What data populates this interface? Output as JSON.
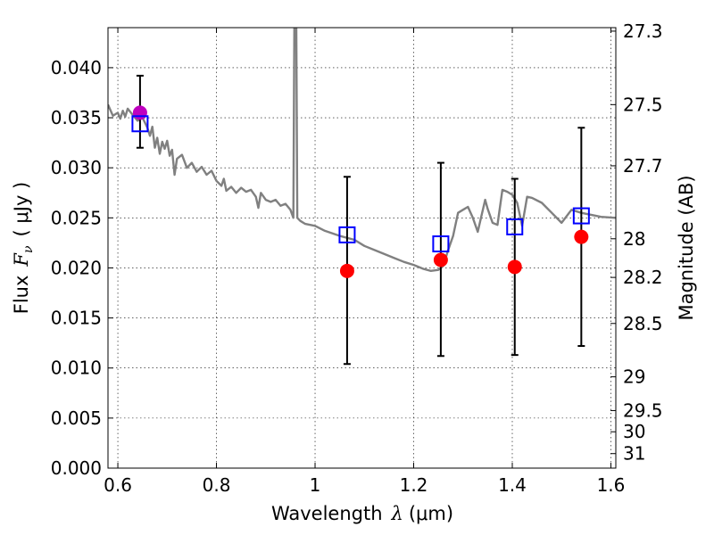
{
  "chart_data": {
    "type": "scatter",
    "title": "",
    "xlabel_main": "Wavelength",
    "xlabel_symbol": "λ",
    "xlabel_unit": "(μm)",
    "ylabel_main": "Flux",
    "ylabel_symbol": "F",
    "ylabel_subscript": "ν",
    "ylabel_unit": "( μJy )",
    "y2label": "Magnitude (AB)",
    "xlim": [
      0.58,
      1.61
    ],
    "ylim": [
      0.0,
      0.044
    ],
    "grid": true,
    "x_ticks": [
      0.6,
      0.8,
      1.0,
      1.2,
      1.4,
      1.6
    ],
    "x_tick_labels": [
      "0.6",
      "0.8",
      "1",
      "1.2",
      "1.4",
      "1.6"
    ],
    "y_ticks": [
      0.0,
      0.005,
      0.01,
      0.015,
      0.02,
      0.025,
      0.03,
      0.035,
      0.04
    ],
    "y_tick_labels": [
      "0.000",
      "0.005",
      "0.010",
      "0.015",
      "0.020",
      "0.025",
      "0.030",
      "0.035",
      "0.040"
    ],
    "y2_ticks": [
      {
        "mag": "27.3",
        "flux": 0.04365
      },
      {
        "mag": "27.5",
        "flux": 0.03631
      },
      {
        "mag": "27.7",
        "flux": 0.0302
      },
      {
        "mag": "28",
        "flux": 0.02291
      },
      {
        "mag": "28.2",
        "flux": 0.01905
      },
      {
        "mag": "28.5",
        "flux": 0.01445
      },
      {
        "mag": "29",
        "flux": 0.00912
      },
      {
        "mag": "29.5",
        "flux": 0.00575
      },
      {
        "mag": "30",
        "flux": 0.00363
      },
      {
        "mag": "31",
        "flux": 0.00145
      }
    ],
    "series": [
      {
        "kind": "spectrum",
        "color": "#808080",
        "points": [
          [
            0.58,
            0.0363
          ],
          [
            0.59,
            0.0352
          ],
          [
            0.6,
            0.0355
          ],
          [
            0.605,
            0.0349
          ],
          [
            0.61,
            0.0357
          ],
          [
            0.615,
            0.0351
          ],
          [
            0.62,
            0.0359
          ],
          [
            0.63,
            0.0353
          ],
          [
            0.64,
            0.0347
          ],
          [
            0.65,
            0.035
          ],
          [
            0.66,
            0.034
          ],
          [
            0.665,
            0.0332
          ],
          [
            0.67,
            0.0341
          ],
          [
            0.675,
            0.032
          ],
          [
            0.68,
            0.033
          ],
          [
            0.685,
            0.0314
          ],
          [
            0.69,
            0.0326
          ],
          [
            0.695,
            0.0319
          ],
          [
            0.7,
            0.0327
          ],
          [
            0.705,
            0.0312
          ],
          [
            0.71,
            0.0318
          ],
          [
            0.715,
            0.0293
          ],
          [
            0.72,
            0.0309
          ],
          [
            0.73,
            0.0313
          ],
          [
            0.74,
            0.03
          ],
          [
            0.75,
            0.0305
          ],
          [
            0.76,
            0.0296
          ],
          [
            0.77,
            0.0301
          ],
          [
            0.78,
            0.0293
          ],
          [
            0.79,
            0.0297
          ],
          [
            0.8,
            0.0287
          ],
          [
            0.81,
            0.0282
          ],
          [
            0.815,
            0.0289
          ],
          [
            0.82,
            0.0277
          ],
          [
            0.83,
            0.0281
          ],
          [
            0.84,
            0.0275
          ],
          [
            0.85,
            0.028
          ],
          [
            0.86,
            0.0276
          ],
          [
            0.87,
            0.0278
          ],
          [
            0.88,
            0.0271
          ],
          [
            0.885,
            0.026
          ],
          [
            0.89,
            0.0275
          ],
          [
            0.9,
            0.0268
          ],
          [
            0.91,
            0.0266
          ],
          [
            0.92,
            0.0268
          ],
          [
            0.93,
            0.0262
          ],
          [
            0.94,
            0.0264
          ],
          [
            0.95,
            0.0258
          ],
          [
            0.956,
            0.025
          ],
          [
            0.958,
            0.044
          ],
          [
            0.962,
            0.044
          ],
          [
            0.964,
            0.025
          ],
          [
            0.97,
            0.0247
          ],
          [
            0.98,
            0.0244
          ],
          [
            1.0,
            0.0242
          ],
          [
            1.02,
            0.0237
          ],
          [
            1.05,
            0.0232
          ],
          [
            1.08,
            0.0228
          ],
          [
            1.1,
            0.0222
          ],
          [
            1.13,
            0.0216
          ],
          [
            1.16,
            0.021
          ],
          [
            1.18,
            0.0206
          ],
          [
            1.2,
            0.0203
          ],
          [
            1.22,
            0.0199
          ],
          [
            1.235,
            0.0197
          ],
          [
            1.25,
            0.0198
          ],
          [
            1.26,
            0.0202
          ],
          [
            1.27,
            0.0218
          ],
          [
            1.28,
            0.0232
          ],
          [
            1.29,
            0.0255
          ],
          [
            1.3,
            0.0258
          ],
          [
            1.31,
            0.0261
          ],
          [
            1.32,
            0.025
          ],
          [
            1.33,
            0.0236
          ],
          [
            1.345,
            0.0268
          ],
          [
            1.35,
            0.0259
          ],
          [
            1.36,
            0.0245
          ],
          [
            1.37,
            0.0243
          ],
          [
            1.38,
            0.0278
          ],
          [
            1.39,
            0.0276
          ],
          [
            1.4,
            0.0273
          ],
          [
            1.41,
            0.0265
          ],
          [
            1.42,
            0.0242
          ],
          [
            1.43,
            0.0271
          ],
          [
            1.44,
            0.027
          ],
          [
            1.46,
            0.0265
          ],
          [
            1.48,
            0.0255
          ],
          [
            1.5,
            0.0245
          ],
          [
            1.52,
            0.0258
          ],
          [
            1.54,
            0.0255
          ],
          [
            1.56,
            0.0253
          ],
          [
            1.58,
            0.0251
          ],
          [
            1.61,
            0.025
          ]
        ]
      },
      {
        "kind": "observed",
        "marker": "circle",
        "color": "#ff0000",
        "points": [
          {
            "x": 1.065,
            "y": 0.0197,
            "ylo": 0.0104,
            "yhi": 0.0291
          },
          {
            "x": 1.255,
            "y": 0.0208,
            "ylo": 0.0112,
            "yhi": 0.0305
          },
          {
            "x": 1.405,
            "y": 0.0201,
            "ylo": 0.0113,
            "yhi": 0.0289
          },
          {
            "x": 1.54,
            "y": 0.0231,
            "ylo": 0.0122,
            "yhi": 0.034
          }
        ]
      },
      {
        "kind": "observed",
        "marker": "circle",
        "color": "#bf00bf",
        "points": [
          {
            "x": 0.645,
            "y": 0.0355,
            "ylo": 0.032,
            "yhi": 0.0392
          }
        ]
      },
      {
        "kind": "model",
        "marker": "square",
        "color": "#0000ff",
        "points": [
          {
            "x": 0.645,
            "y": 0.0344
          },
          {
            "x": 1.065,
            "y": 0.0233
          },
          {
            "x": 1.255,
            "y": 0.0224
          },
          {
            "x": 1.405,
            "y": 0.0241
          },
          {
            "x": 1.54,
            "y": 0.0252
          }
        ]
      }
    ]
  }
}
